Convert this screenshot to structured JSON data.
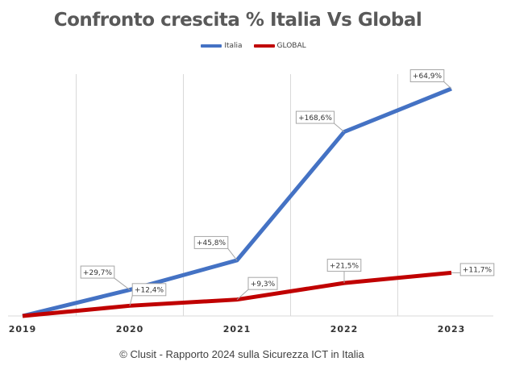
{
  "chart_data": {
    "type": "line",
    "title": "Confronto crescita % Italia Vs Global",
    "xlabel": "",
    "ylabel": "",
    "x": [
      "2019",
      "2020",
      "2021",
      "2022",
      "2023"
    ],
    "ylim": [
      0,
      100
    ],
    "grid": "vertical",
    "legend_position": "top",
    "series": [
      {
        "name": "Italia",
        "color": "#4472C4",
        "values": [
          0,
          11.5,
          24.5,
          81,
          100
        ],
        "labels": [
          "",
          "+29,7%",
          "+45,8%",
          "+168,6%",
          "+64,9%"
        ]
      },
      {
        "name": "GLOBAL",
        "color": "#C00000",
        "values": [
          0,
          4.5,
          7.2,
          14.5,
          19
        ],
        "labels": [
          "",
          "+12,4%",
          "+9,3%",
          "+21,5%",
          "+11,7%"
        ]
      }
    ]
  },
  "footer": "© Clusit - Rapporto 2024 sulla Sicurezza ICT in Italia"
}
